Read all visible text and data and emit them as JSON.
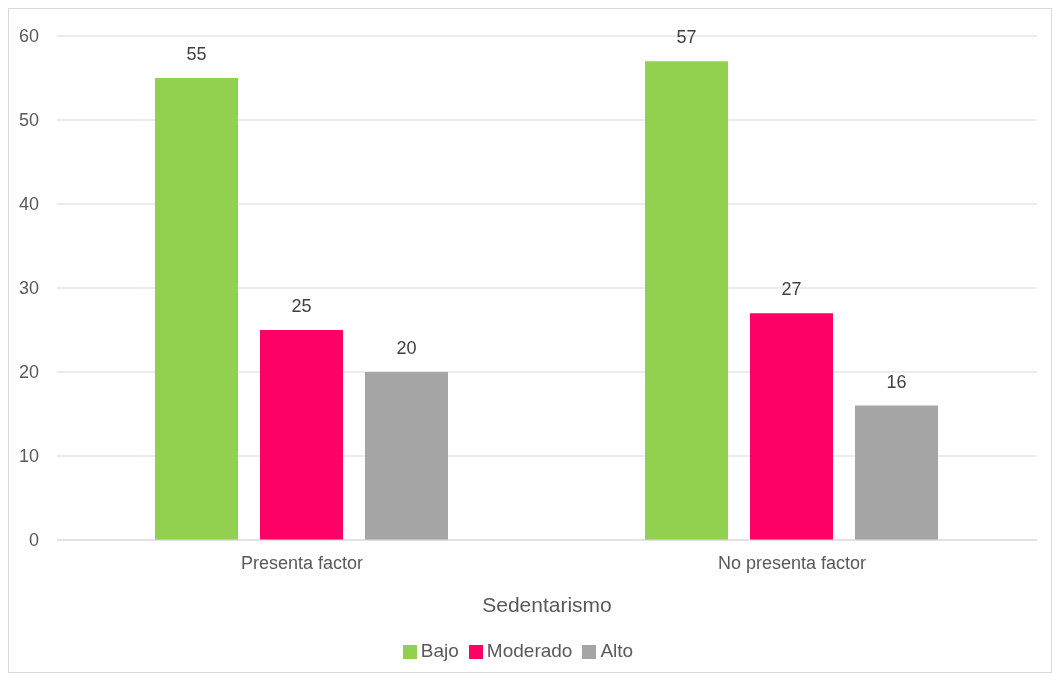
{
  "chart_data": {
    "type": "bar",
    "xlabel": "Sedentarismo",
    "categories": [
      "Presenta factor",
      "No presenta factor"
    ],
    "series": [
      {
        "name": "Bajo",
        "color": "#92d050",
        "values": [
          55,
          57
        ]
      },
      {
        "name": "Moderado",
        "color": "#ff0066",
        "values": [
          25,
          27
        ]
      },
      {
        "name": "Alto",
        "color": "#a5a5a5",
        "values": [
          20,
          16
        ]
      }
    ],
    "ylim": [
      0,
      60
    ],
    "yticks": [
      0,
      10,
      20,
      30,
      40,
      50,
      60
    ],
    "grid": "y",
    "legend": "bottom",
    "data_labels": true
  }
}
